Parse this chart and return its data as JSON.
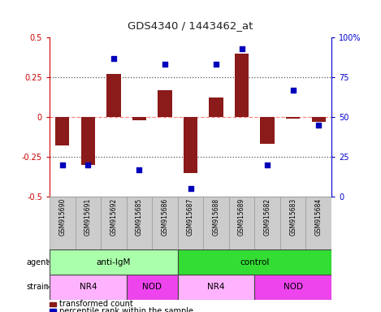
{
  "title": "GDS4340 / 1443462_at",
  "samples": [
    "GSM915690",
    "GSM915691",
    "GSM915692",
    "GSM915685",
    "GSM915686",
    "GSM915687",
    "GSM915688",
    "GSM915689",
    "GSM915682",
    "GSM915683",
    "GSM915684"
  ],
  "bar_values": [
    -0.18,
    -0.3,
    0.27,
    -0.02,
    0.17,
    -0.35,
    0.12,
    0.4,
    -0.17,
    -0.01,
    -0.03
  ],
  "percentile_values": [
    20,
    20,
    87,
    17,
    83,
    5,
    83,
    93,
    20,
    67,
    45
  ],
  "bar_color": "#8B1A1A",
  "dot_color": "#0000BB",
  "ylim_left": [
    -0.5,
    0.5
  ],
  "ylim_right": [
    0,
    100
  ],
  "yticks_left": [
    -0.5,
    -0.25,
    0,
    0.25,
    0.5
  ],
  "yticks_right": [
    0,
    25,
    50,
    75,
    100
  ],
  "ytick_labels_left": [
    "-0.5",
    "-0.25",
    "0",
    "0.25",
    "0.5"
  ],
  "ytick_labels_right": [
    "0",
    "25",
    "50",
    "75",
    "100%"
  ],
  "hlines_dotted": [
    -0.25,
    0.25
  ],
  "hline_dashed": 0,
  "agent_groups": [
    {
      "label": "anti-IgM",
      "start": 0,
      "end": 5,
      "color": "#AAFFAA"
    },
    {
      "label": "control",
      "start": 5,
      "end": 11,
      "color": "#33DD33"
    }
  ],
  "strain_groups": [
    {
      "label": "NR4",
      "start": 0,
      "end": 3,
      "color": "#FFB3FF"
    },
    {
      "label": "NOD",
      "start": 3,
      "end": 5,
      "color": "#EE44EE"
    },
    {
      "label": "NR4",
      "start": 5,
      "end": 8,
      "color": "#FFB3FF"
    },
    {
      "label": "NOD",
      "start": 8,
      "end": 11,
      "color": "#EE44EE"
    }
  ],
  "bg_color": "#FFFFFF",
  "left_axis_color": "#CC0000",
  "right_axis_color": "#0000CC",
  "zero_line_color": "#FF8888",
  "dot_line_color": "#555555"
}
